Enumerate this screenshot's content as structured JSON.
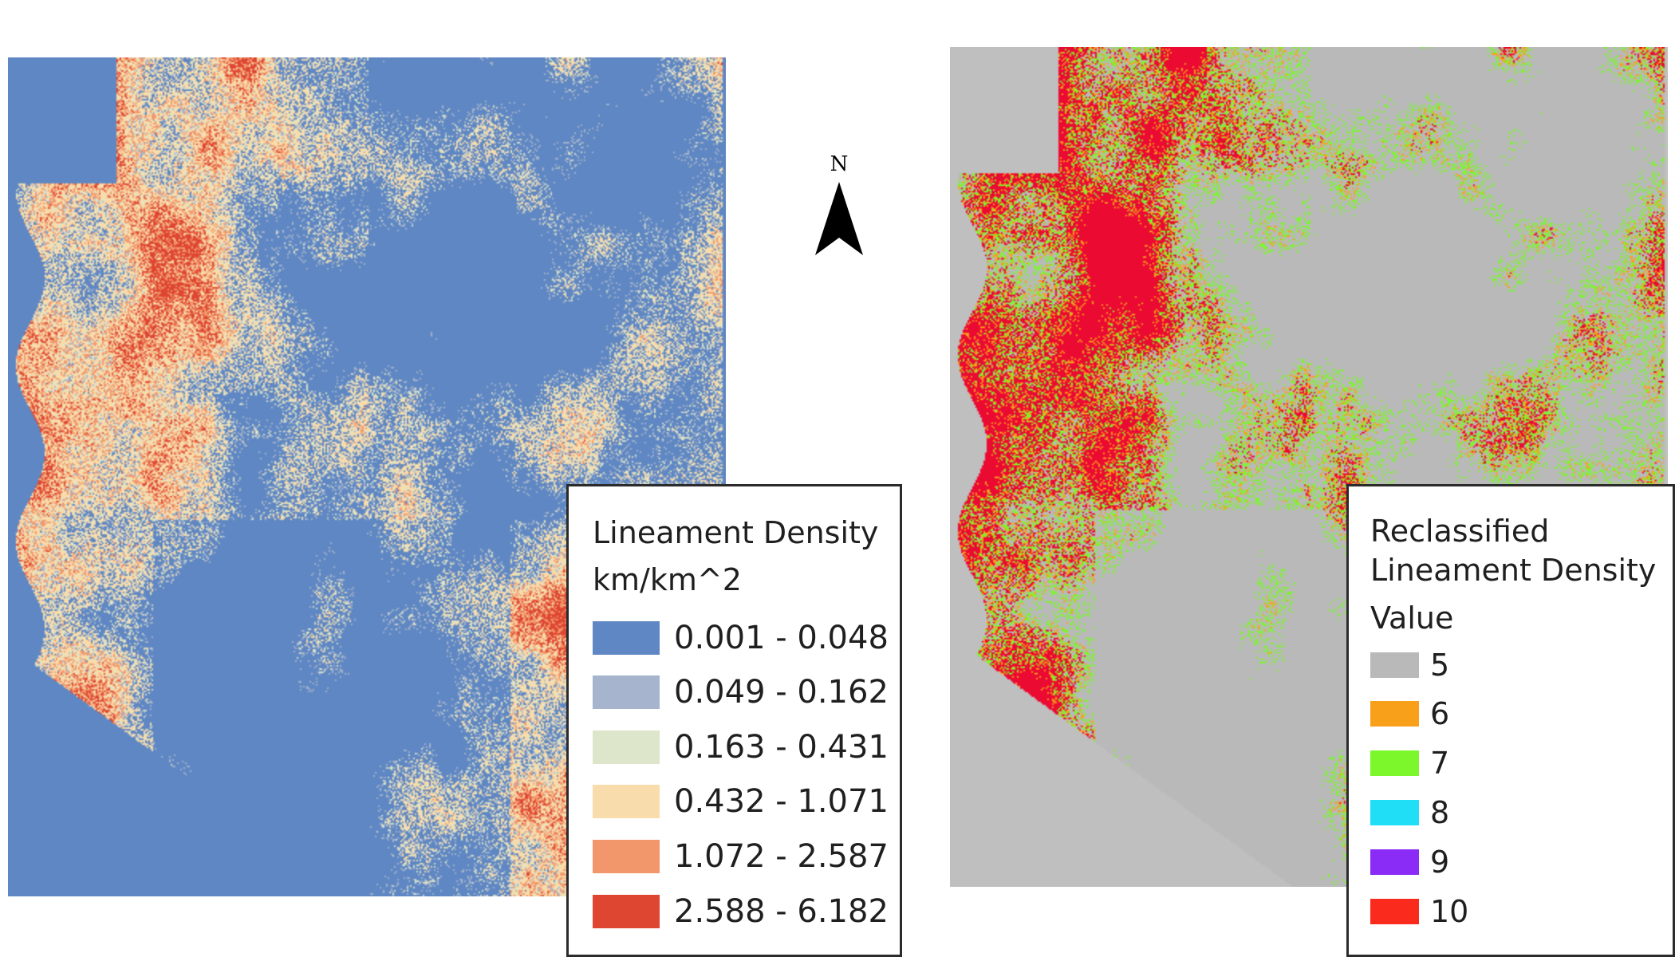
{
  "left_map": {
    "background_color": "#5f87c3",
    "legend": {
      "title": "Lineament Density",
      "unit": "km/km^2",
      "classes": [
        {
          "label": "0.001 - 0.048",
          "color": "#5f87c3"
        },
        {
          "label": "0.049 - 0.162",
          "color": "#a6b5cd"
        },
        {
          "label": "0.163 - 0.431",
          "color": "#dde6ca"
        },
        {
          "label": "0.432 - 1.071",
          "color": "#f8dcab"
        },
        {
          "label": "1.072 - 2.587",
          "color": "#f2976b"
        },
        {
          "label": "2.588 - 6.182",
          "color": "#de4632"
        }
      ]
    }
  },
  "north_arrow": {
    "letter": "N"
  },
  "right_map": {
    "background_color": "#bfbfbf",
    "legend": {
      "title_line1": "Reclassified",
      "title_line2": "Lineament Density",
      "field": "Value",
      "classes": [
        {
          "label": "5",
          "color": "#b9b9b9"
        },
        {
          "label": "6",
          "color": "#f9a01b"
        },
        {
          "label": "7",
          "color": "#7cf72c"
        },
        {
          "label": "8",
          "color": "#20def5"
        },
        {
          "label": "9",
          "color": "#8a2cf5"
        },
        {
          "label": "10",
          "color": "#fa2a1c"
        }
      ]
    }
  }
}
